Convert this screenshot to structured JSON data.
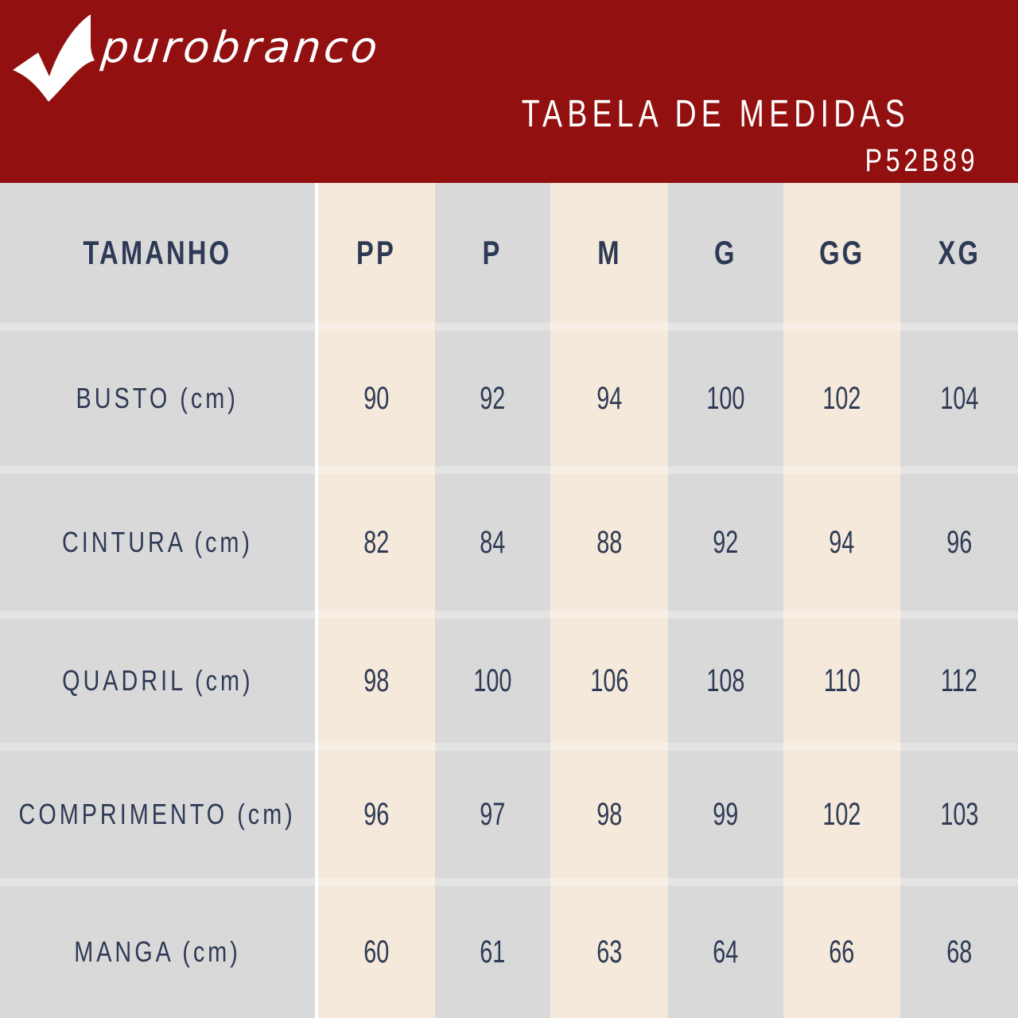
{
  "brand": {
    "name": "purobranco",
    "logo_icon": "checkmark-icon",
    "color": "#921010"
  },
  "title": "TABELA DE MEDIDAS",
  "product_code": "P52B89",
  "colors": {
    "text": "#2e3a55",
    "gray": "#d9d9d9",
    "beige": "#f4e9da"
  },
  "table": {
    "header_label": "TAMANHO",
    "sizes": [
      "PP",
      "P",
      "M",
      "G",
      "GG",
      "XG"
    ],
    "rows": [
      {
        "label": "BUSTO (cm)",
        "values": [
          "90",
          "92",
          "94",
          "100",
          "102",
          "104"
        ]
      },
      {
        "label": "CINTURA (cm)",
        "values": [
          "82",
          "84",
          "88",
          "92",
          "94",
          "96"
        ]
      },
      {
        "label": "QUADRIL (cm)",
        "values": [
          "98",
          "100",
          "106",
          "108",
          "110",
          "112"
        ]
      },
      {
        "label": "COMPRIMENTO (cm)",
        "values": [
          "96",
          "97",
          "98",
          "99",
          "102",
          "103"
        ]
      },
      {
        "label": "MANGA (cm)",
        "values": [
          "60",
          "61",
          "63",
          "64",
          "66",
          "68"
        ]
      }
    ]
  }
}
